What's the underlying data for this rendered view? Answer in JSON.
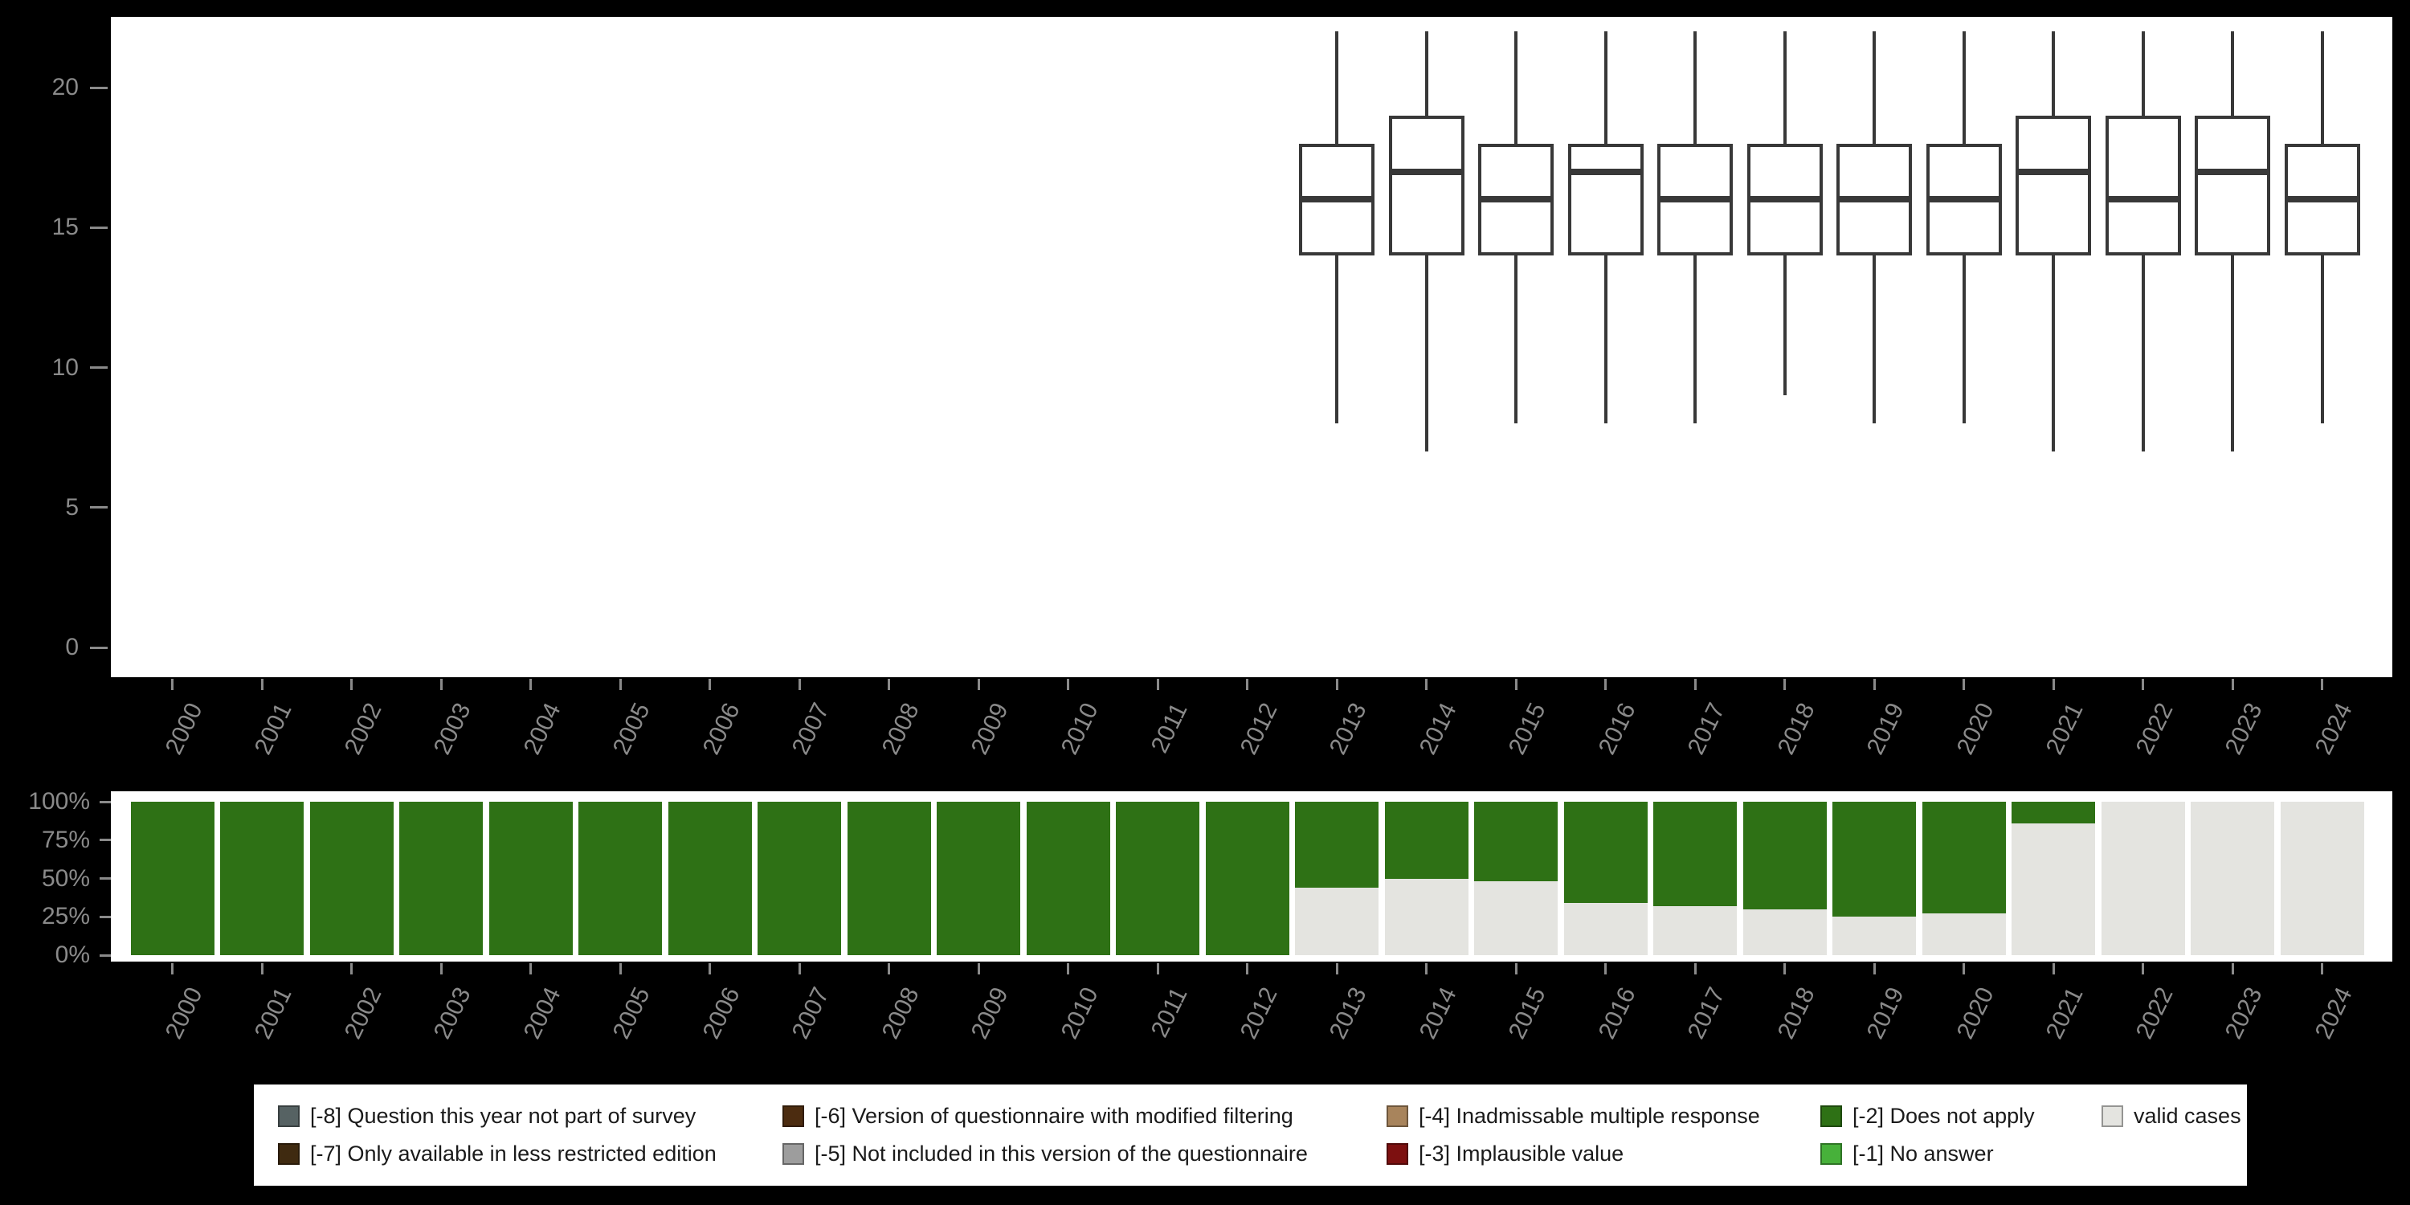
{
  "palette": {
    "background": "#000000",
    "panel": "#ffffff",
    "axis_text": "#8a8a8a",
    "box_stroke": "#383838",
    "legend_bg": "#ffffff",
    "legend_text": "#1a1a1a"
  },
  "chart_data": [
    {
      "type": "boxplot",
      "title": "",
      "xlabel": "",
      "ylabel": "",
      "grid": false,
      "categories": [
        "2000",
        "2001",
        "2002",
        "2003",
        "2004",
        "2005",
        "2006",
        "2007",
        "2008",
        "2009",
        "2010",
        "2011",
        "2012",
        "2013",
        "2014",
        "2015",
        "2016",
        "2017",
        "2018",
        "2019",
        "2020",
        "2021",
        "2022",
        "2023",
        "2024"
      ],
      "yticks": [
        0,
        5,
        10,
        15,
        20
      ],
      "ylim": [
        -1.1,
        22.6
      ],
      "boxes": [
        {
          "year": "2013",
          "lower": 8,
          "q1": 14,
          "median": 16,
          "q3": 18,
          "upper": 22
        },
        {
          "year": "2014",
          "lower": 7,
          "q1": 14,
          "median": 17,
          "q3": 19,
          "upper": 22
        },
        {
          "year": "2015",
          "lower": 8,
          "q1": 14,
          "median": 16,
          "q3": 18,
          "upper": 22
        },
        {
          "year": "2016",
          "lower": 8,
          "q1": 14,
          "median": 17,
          "q3": 18,
          "upper": 22
        },
        {
          "year": "2017",
          "lower": 8,
          "q1": 14,
          "median": 16,
          "q3": 18,
          "upper": 22
        },
        {
          "year": "2018",
          "lower": 9,
          "q1": 14,
          "median": 16,
          "q3": 18,
          "upper": 22
        },
        {
          "year": "2019",
          "lower": 8,
          "q1": 14,
          "median": 16,
          "q3": 18,
          "upper": 22
        },
        {
          "year": "2020",
          "lower": 8,
          "q1": 14,
          "median": 16,
          "q3": 18,
          "upper": 22
        },
        {
          "year": "2021",
          "lower": 7,
          "q1": 14,
          "median": 17,
          "q3": 19,
          "upper": 22
        },
        {
          "year": "2022",
          "lower": 7,
          "q1": 14,
          "median": 16,
          "q3": 19,
          "upper": 22
        },
        {
          "year": "2023",
          "lower": 7,
          "q1": 14,
          "median": 17,
          "q3": 19,
          "upper": 22
        },
        {
          "year": "2024",
          "lower": 8,
          "q1": 14,
          "median": 16,
          "q3": 18,
          "upper": 22
        }
      ]
    },
    {
      "type": "bar",
      "stacked": true,
      "unit": "percent",
      "title": "",
      "categories": [
        "2000",
        "2001",
        "2002",
        "2003",
        "2004",
        "2005",
        "2006",
        "2007",
        "2008",
        "2009",
        "2010",
        "2011",
        "2012",
        "2013",
        "2014",
        "2015",
        "2016",
        "2017",
        "2018",
        "2019",
        "2020",
        "2021",
        "2022",
        "2023",
        "2024"
      ],
      "yticks": [
        "0%",
        "25%",
        "50%",
        "75%",
        "100%"
      ],
      "ylim": [
        0,
        100
      ],
      "series": [
        {
          "name": "[-2] Does not apply",
          "color": "#2e7115",
          "values": [
            100,
            100,
            100,
            100,
            100,
            100,
            100,
            100,
            100,
            100,
            100,
            100,
            100,
            56,
            50,
            52,
            66,
            68,
            70,
            75,
            73,
            14,
            0,
            0,
            0
          ]
        },
        {
          "name": "valid cases",
          "color": "#e4e4e0",
          "values": [
            0,
            0,
            0,
            0,
            0,
            0,
            0,
            0,
            0,
            0,
            0,
            0,
            0,
            44,
            50,
            48,
            34,
            32,
            30,
            25,
            27,
            86,
            100,
            100,
            100
          ]
        }
      ]
    }
  ],
  "legend": {
    "items": [
      {
        "code": "-8",
        "label": "[-8] Question this year not part of survey",
        "color": "#566263"
      },
      {
        "code": "-6",
        "label": "[-6] Version of questionnaire with modified filtering",
        "color": "#4c2c10"
      },
      {
        "code": "-4",
        "label": "[-4] Inadmissable multiple response",
        "color": "#a8845c"
      },
      {
        "code": "-2",
        "label": "[-2] Does not apply",
        "color": "#2e7115"
      },
      {
        "code": "valid",
        "label": "valid cases",
        "color": "#e4e4e0"
      },
      {
        "code": "-7",
        "label": "[-7] Only available in less restricted edition",
        "color": "#3f2a10"
      },
      {
        "code": "-5",
        "label": "[-5] Not included in this version of the questionnaire",
        "color": "#9d9d9d"
      },
      {
        "code": "-3",
        "label": "[-3] Implausible value",
        "color": "#7d1010"
      },
      {
        "code": "-1",
        "label": "[-1] No answer",
        "color": "#47b13a"
      }
    ]
  }
}
